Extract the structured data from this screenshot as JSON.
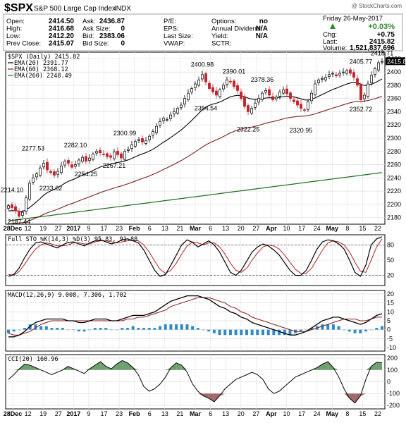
{
  "header": {
    "symbol": "$SPX",
    "name": "S&P 500 Large Cap Index",
    "exchange": "INDX",
    "watermark": "@ StockCharts.com",
    "fields": [
      {
        "label": "Open:",
        "value": "2414.50"
      },
      {
        "label": "High:",
        "value": "2416.68"
      },
      {
        "label": "Low:",
        "value": "2412.20"
      },
      {
        "label": "Prev Close:",
        "value": "2415.07"
      },
      {
        "label": "Ask:",
        "value": "2436.87"
      },
      {
        "label": "Ask Size:",
        "value": "0"
      },
      {
        "label": "Bid:",
        "value": "2383.06"
      },
      {
        "label": "Bid Size:",
        "value": "0"
      },
      {
        "label": "P/E:",
        "value": ""
      },
      {
        "label": "EPS:",
        "value": ""
      },
      {
        "label": "Last Size:",
        "value": ""
      },
      {
        "label": "VWAP:",
        "value": ""
      },
      {
        "label": "Options:",
        "value": "no"
      },
      {
        "label": "Annual Dividend:",
        "value": "N/A"
      },
      {
        "label": "Yield:",
        "value": "N/A"
      },
      {
        "label": "SCTR:",
        "value": ""
      }
    ],
    "date": "Friday  26-May-2017",
    "change_pct": "+0.03%",
    "chg_label": "Chg:",
    "chg_value": "+0.75",
    "last_label": "Last:",
    "last_value": "2415.82",
    "volume_label": "Volume:",
    "volume_value": "1,521,837,696",
    "up_color": "#2e8b2e"
  },
  "chart_data": [
    {
      "type": "candlestick",
      "legend": [
        "$SPX (Daily) 2415.82",
        "EMA(20) 2391.77",
        "EMA(60) 2368.12",
        "EMA(260) 2248.49"
      ],
      "colors": {
        "ema20": "#000000",
        "ema60": "#7a1f1f",
        "ema260": "#1a6b1a",
        "up": "#000000",
        "down": "#c0262d"
      },
      "ylim": [
        2170,
        2430
      ],
      "yticks": [
        2180,
        2200,
        2220,
        2240,
        2260,
        2280,
        2300,
        2320,
        2340,
        2360,
        2380,
        2400,
        2420
      ],
      "xlabels": [
        "28Dec",
        "12",
        "19",
        "27",
        "2017",
        "9",
        "17",
        "23",
        "Feb",
        "6",
        "13",
        "21",
        "Mar",
        "6",
        "13",
        "20",
        "27",
        "Apr",
        "10",
        "17",
        "24",
        "May",
        "8",
        "15",
        "22"
      ],
      "annotations": [
        "2214.10",
        "2187.44",
        "2277.53",
        "2233.62",
        "2282.10",
        "2254.25",
        "2300.99",
        "2267.21",
        "2400.98",
        "2354.54",
        "2390.01",
        "2322.25",
        "2378.36",
        "2320.95",
        "2405.77",
        "2352.72",
        "2418.71"
      ],
      "last_value": "2415.82",
      "closes": [
        2198,
        2195,
        2190,
        2182,
        2188,
        2210,
        2232,
        2240,
        2246,
        2255,
        2262,
        2252,
        2248,
        2244,
        2250,
        2258,
        2265,
        2262,
        2256,
        2260,
        2267,
        2271,
        2265,
        2270,
        2276,
        2280,
        2278,
        2275,
        2272,
        2271,
        2279,
        2275,
        2270,
        2280,
        2283,
        2290,
        2295,
        2298,
        2294,
        2296,
        2303,
        2310,
        2318,
        2325,
        2330,
        2328,
        2335,
        2340,
        2345,
        2350,
        2360,
        2368,
        2375,
        2382,
        2388,
        2396,
        2385,
        2375,
        2370,
        2365,
        2373,
        2380,
        2388,
        2385,
        2378,
        2372,
        2360,
        2348,
        2340,
        2345,
        2353,
        2360,
        2368,
        2372,
        2365,
        2358,
        2362,
        2370,
        2373,
        2367,
        2360,
        2355,
        2350,
        2345,
        2342,
        2355,
        2368,
        2382,
        2388,
        2390,
        2392,
        2396,
        2398,
        2394,
        2398,
        2400,
        2402,
        2398,
        2392,
        2380,
        2358,
        2365,
        2382,
        2395,
        2405,
        2414,
        2416
      ]
    },
    {
      "type": "line",
      "legend": [
        "Full STO %K(14,3) %D(3) 95.83, 91.88"
      ],
      "ylim": [
        0,
        100
      ],
      "yticks": [
        20,
        50,
        80
      ],
      "k": [
        18,
        22,
        35,
        55,
        72,
        84,
        86,
        82,
        78,
        74,
        80,
        85,
        86,
        82,
        78,
        84,
        88,
        90,
        86,
        82,
        85,
        90,
        92,
        88,
        84,
        70,
        50,
        30,
        18,
        22,
        40,
        60,
        80,
        90,
        85,
        76,
        82,
        88,
        80,
        66,
        46,
        26,
        20,
        30,
        48,
        66,
        76,
        82,
        78,
        70,
        60,
        45,
        30,
        20,
        20,
        30,
        50,
        72,
        86,
        90,
        88,
        82,
        72,
        50,
        26,
        18,
        40,
        80,
        92,
        96
      ],
      "d": [
        22,
        20,
        28,
        42,
        58,
        72,
        80,
        84,
        82,
        78,
        78,
        80,
        84,
        84,
        82,
        82,
        86,
        88,
        88,
        86,
        84,
        86,
        88,
        89,
        88,
        80,
        66,
        48,
        32,
        24,
        30,
        44,
        62,
        78,
        86,
        84,
        80,
        84,
        84,
        76,
        62,
        44,
        30,
        26,
        34,
        50,
        64,
        76,
        80,
        78,
        72,
        60,
        46,
        32,
        24,
        24,
        34,
        52,
        70,
        84,
        88,
        86,
        80,
        66,
        46,
        28,
        26,
        50,
        76,
        92
      ]
    },
    {
      "type": "line",
      "legend": [
        "MACD(12,26,9) 9.008, 7.306, 1.702"
      ],
      "legend_colors": [
        "#000000",
        "#8a1a1a",
        "#1f6fa8"
      ],
      "ylim": [
        -12,
        22
      ],
      "yticks": [
        -10,
        -5,
        0,
        5,
        10,
        15,
        20
      ],
      "macd": [
        -4,
        -4,
        -3,
        -1,
        2,
        4,
        5,
        6,
        6,
        6,
        6,
        5,
        5,
        4,
        4,
        5,
        6,
        6,
        6,
        5,
        5,
        6,
        7,
        8,
        8,
        8,
        9,
        10,
        12,
        14,
        16,
        17,
        18,
        19,
        19,
        19,
        18,
        17,
        15,
        13,
        12,
        10,
        9,
        7,
        6,
        4,
        3,
        2,
        1,
        0,
        -1,
        -2,
        -3,
        -3,
        -2,
        -1,
        1,
        3,
        5,
        6,
        7,
        7,
        6,
        5,
        4,
        3,
        4,
        6,
        8,
        9
      ],
      "signal": [
        -2,
        -3,
        -3,
        -2,
        -1,
        1,
        3,
        4,
        5,
        5,
        5,
        5,
        5,
        5,
        5,
        5,
        5,
        5,
        5,
        5,
        5,
        5,
        6,
        6,
        7,
        7,
        8,
        9,
        10,
        11,
        13,
        14,
        15,
        16,
        17,
        18,
        18,
        18,
        17,
        16,
        15,
        13,
        12,
        10,
        9,
        7,
        6,
        5,
        4,
        3,
        2,
        1,
        0,
        -1,
        -1,
        -1,
        0,
        1,
        2,
        3,
        4,
        5,
        6,
        6,
        6,
        5,
        5,
        6,
        7,
        7
      ]
    },
    {
      "type": "area",
      "legend": [
        "CCI(20) 160.96"
      ],
      "ylim": [
        -230,
        230
      ],
      "yticks": [
        -200,
        -100,
        0,
        100,
        200
      ],
      "cci": [
        20,
        60,
        110,
        150,
        140,
        120,
        100,
        80,
        60,
        80,
        100,
        130,
        110,
        90,
        70,
        110,
        140,
        170,
        130,
        110,
        150,
        180,
        160,
        120,
        60,
        -40,
        -80,
        -60,
        -20,
        40,
        120,
        160,
        140,
        80,
        -20,
        -80,
        -120,
        -140,
        -170,
        -120,
        -60,
        -20,
        20,
        40,
        60,
        80,
        60,
        20,
        -60,
        -100,
        -80,
        -40,
        0,
        40,
        60,
        80,
        100,
        120,
        150,
        170,
        120,
        40,
        -60,
        -140,
        -180,
        -120,
        20,
        130,
        165,
        161
      ],
      "pos_color": "#6fa06f",
      "neg_color": "#a06868"
    }
  ]
}
